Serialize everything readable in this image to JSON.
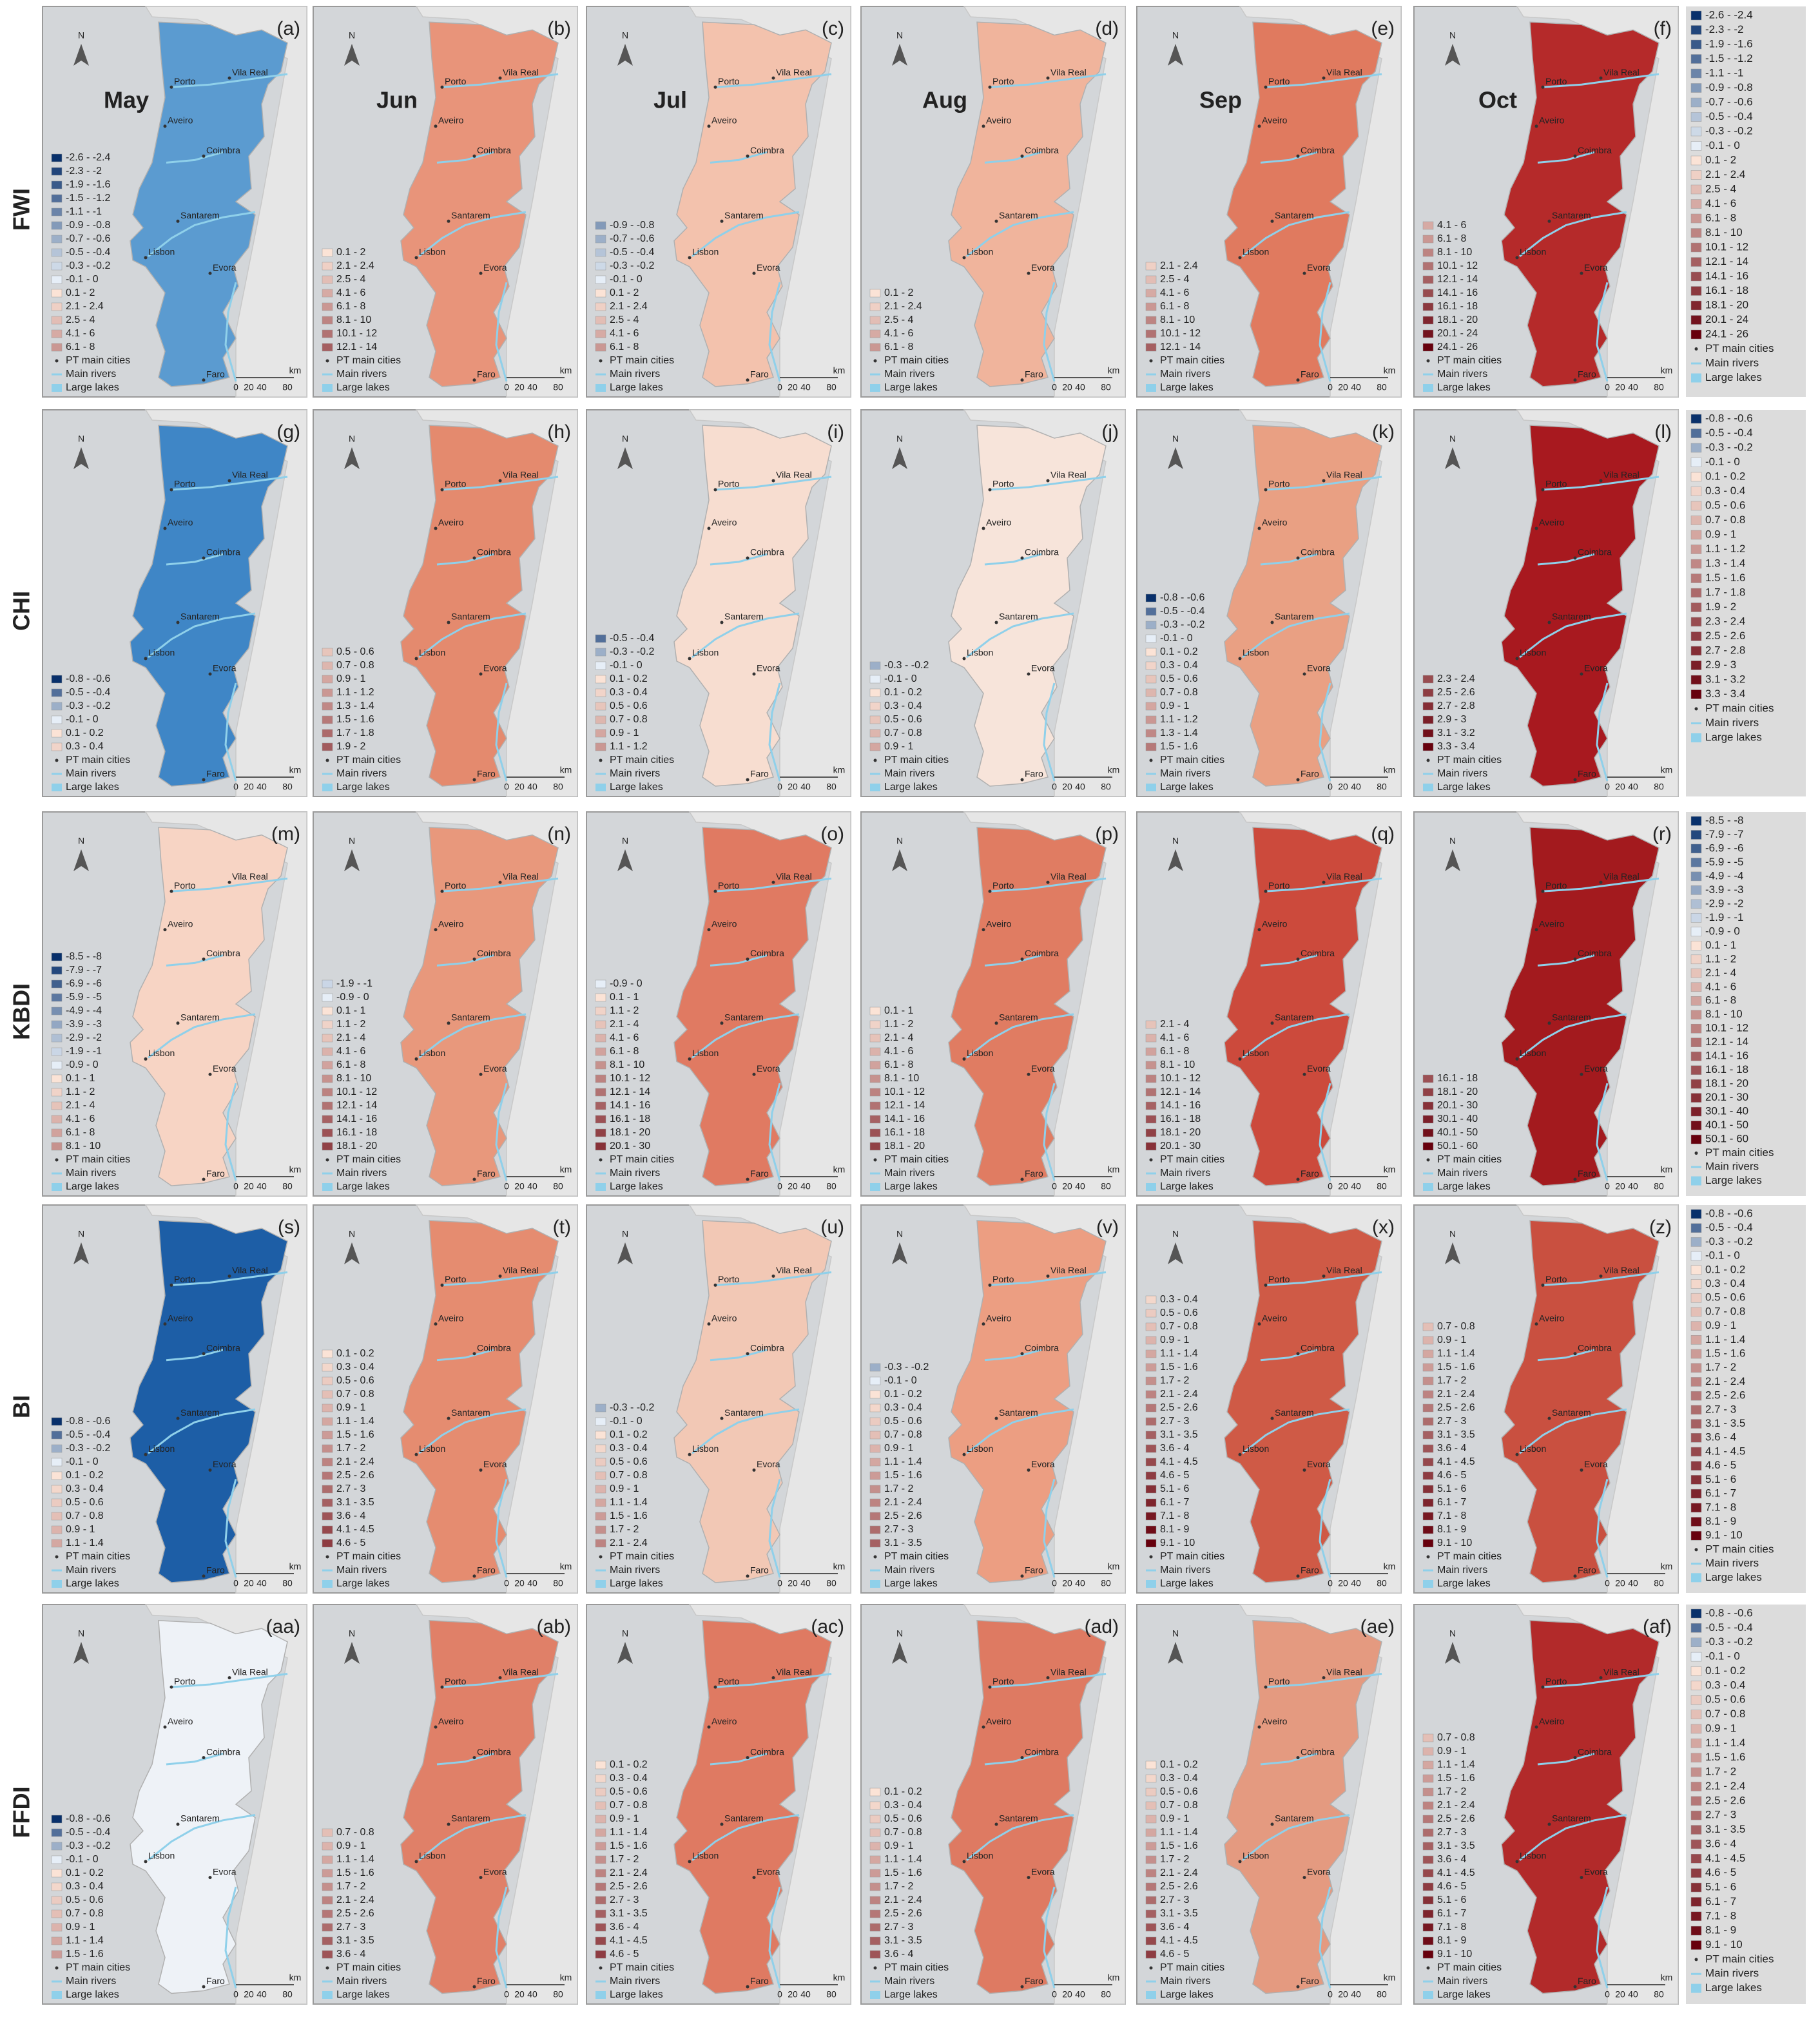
{
  "months": [
    "May",
    "Jun",
    "Jul",
    "Aug",
    "Sep",
    "Oct"
  ],
  "north": "N",
  "cities": [
    "Porto",
    "Vila Real",
    "Aveiro",
    "Coimbra",
    "Santarem",
    "Lisbon",
    "Evora",
    "Faro"
  ],
  "legend_extras": [
    "PT main cities",
    "Main rivers",
    "Large lakes"
  ],
  "scale_bar": [
    "0",
    "20",
    "40",
    "80",
    "km"
  ],
  "rows": [
    {
      "index": "FWI",
      "side_legend": [
        "-2.6 - -2.4",
        "-2.3 - -2",
        "-1.9 - -1.6",
        "-1.5 - -1.2",
        "-1.1 - -1",
        "-0.9 - -0.8",
        "-0.7 - -0.6",
        "-0.5 - -0.4",
        "-0.3 - -0.2",
        "-0.1 - 0",
        "0.1 - 2",
        "2.1 - 2.4",
        "2.5 - 4",
        "4.1 - 6",
        "6.1 - 8",
        "8.1 - 10",
        "10.1 - 12",
        "12.1 - 14",
        "14.1 - 16",
        "16.1 - 18",
        "18.1 - 20",
        "20.1 - 24",
        "24.1 - 26"
      ],
      "panels": [
        {
          "label": "(a)",
          "fill": "#5b9bd0",
          "legend": [
            "-2.6 - -2.4",
            "-2.3 - -2",
            "-1.9 - -1.6",
            "-1.5 - -1.2",
            "-1.1 - -1",
            "-0.9 - -0.8",
            "-0.7 - -0.6",
            "-0.5 - -0.4",
            "-0.3 - -0.2",
            "-0.1 - 0",
            "0.1 - 2",
            "2.1 - 2.4",
            "2.5 - 4",
            "4.1 - 6",
            "6.1 - 8"
          ]
        },
        {
          "label": "(b)",
          "fill": "#e8947a",
          "legend": [
            "0.1 - 2",
            "2.1 - 2.4",
            "2.5 - 4",
            "4.1 - 6",
            "6.1 - 8",
            "8.1 - 10",
            "10.1 - 12",
            "12.1 - 14"
          ]
        },
        {
          "label": "(c)",
          "fill": "#f3c2ad",
          "legend": [
            "-0.9 - -0.8",
            "-0.7 - -0.6",
            "-0.5 - -0.4",
            "-0.3 - -0.2",
            "-0.1 - 0",
            "0.1 - 2",
            "2.1 - 2.4",
            "2.5 - 4",
            "4.1 - 6",
            "6.1 - 8"
          ]
        },
        {
          "label": "(d)",
          "fill": "#f0b49c",
          "legend": [
            "0.1 - 2",
            "2.1 - 2.4",
            "2.5 - 4",
            "4.1 - 6",
            "6.1 - 8"
          ]
        },
        {
          "label": "(e)",
          "fill": "#e07a5f",
          "legend": [
            "2.1 - 2.4",
            "2.5 - 4",
            "4.1 - 6",
            "6.1 - 8",
            "8.1 - 10",
            "10.1 - 12",
            "12.1 - 14"
          ]
        },
        {
          "label": "(f)",
          "fill": "#b52a2a",
          "legend": [
            "4.1 - 6",
            "6.1 - 8",
            "8.1 - 10",
            "10.1 - 12",
            "12.1 - 14",
            "14.1 - 16",
            "16.1 - 18",
            "18.1 - 20",
            "20.1 - 24",
            "24.1 - 26"
          ]
        }
      ]
    },
    {
      "index": "CHI",
      "side_legend": [
        "-0.8 - -0.6",
        "-0.5 - -0.4",
        "-0.3 - -0.2",
        "-0.1 - 0",
        "0.1 - 0.2",
        "0.3 - 0.4",
        "0.5 - 0.6",
        "0.7 - 0.8",
        "0.9 - 1",
        "1.1 - 1.2",
        "1.3 - 1.4",
        "1.5 - 1.6",
        "1.7 - 1.8",
        "1.9 - 2",
        "2.3 - 2.4",
        "2.5 - 2.6",
        "2.7 - 2.8",
        "2.9 - 3",
        "3.1 - 3.2",
        "3.3 - 3.4"
      ],
      "panels": [
        {
          "label": "(g)",
          "fill": "#3f86c6",
          "legend": [
            "-0.8 - -0.6",
            "-0.5 - -0.4",
            "-0.3 - -0.2",
            "-0.1 - 0",
            "0.1 - 0.2",
            "0.3 - 0.4"
          ]
        },
        {
          "label": "(h)",
          "fill": "#e48a6e",
          "legend": [
            "0.5 - 0.6",
            "0.7 - 0.8",
            "0.9 - 1",
            "1.1 - 1.2",
            "1.3 - 1.4",
            "1.5 - 1.6",
            "1.7 - 1.8",
            "1.9 - 2"
          ]
        },
        {
          "label": "(i)",
          "fill": "#f7ddd0",
          "legend": [
            "-0.5 - -0.4",
            "-0.3 - -0.2",
            "-0.1 - 0",
            "0.1 - 0.2",
            "0.3 - 0.4",
            "0.5 - 0.6",
            "0.7 - 0.8",
            "0.9 - 1",
            "1.1 - 1.2"
          ]
        },
        {
          "label": "(j)",
          "fill": "#f7e4da",
          "legend": [
            "-0.3 - -0.2",
            "-0.1 - 0",
            "0.1 - 0.2",
            "0.3 - 0.4",
            "0.5 - 0.6",
            "0.7 - 0.8",
            "0.9 - 1"
          ]
        },
        {
          "label": "(k)",
          "fill": "#e9a083",
          "legend": [
            "-0.8 - -0.6",
            "-0.5 - -0.4",
            "-0.3 - -0.2",
            "-0.1 - 0",
            "0.1 - 0.2",
            "0.3 - 0.4",
            "0.5 - 0.6",
            "0.7 - 0.8",
            "0.9 - 1",
            "1.1 - 1.2",
            "1.3 - 1.4",
            "1.5 - 1.6"
          ]
        },
        {
          "label": "(l)",
          "fill": "#a8191f",
          "legend": [
            "2.3 - 2.4",
            "2.5 - 2.6",
            "2.7 - 2.8",
            "2.9 - 3",
            "3.1 - 3.2",
            "3.3 - 3.4"
          ]
        }
      ]
    },
    {
      "index": "KBDI",
      "side_legend": [
        "-8.5 - -8",
        "-7.9 - -7",
        "-6.9 - -6",
        "-5.9 - -5",
        "-4.9 - -4",
        "-3.9 - -3",
        "-2.9 - -2",
        "-1.9 - -1",
        "-0.9 - 0",
        "0.1 - 1",
        "1.1 - 2",
        "2.1 - 4",
        "4.1 - 6",
        "6.1 - 8",
        "8.1 - 10",
        "10.1 - 12",
        "12.1 - 14",
        "14.1 - 16",
        "16.1 - 18",
        "18.1 - 20",
        "20.1 - 30",
        "30.1 - 40",
        "40.1 - 50",
        "50.1 - 60"
      ],
      "panels": [
        {
          "label": "(m)",
          "fill": "#f7d4c4",
          "legend": [
            "-8.5 - -8",
            "-7.9 - -7",
            "-6.9 - -6",
            "-5.9 - -5",
            "-4.9 - -4",
            "-3.9 - -3",
            "-2.9 - -2",
            "-1.9 - -1",
            "-0.9 - 0",
            "0.1 - 1",
            "1.1 - 2",
            "2.1 - 4",
            "4.1 - 6",
            "6.1 - 8",
            "8.1 - 10"
          ]
        },
        {
          "label": "(n)",
          "fill": "#e8987c",
          "legend": [
            "-1.9 - -1",
            "-0.9 - 0",
            "0.1 - 1",
            "1.1 - 2",
            "2.1 - 4",
            "4.1 - 6",
            "6.1 - 8",
            "8.1 - 10",
            "10.1 - 12",
            "12.1 - 14",
            "14.1 - 16",
            "16.1 - 18",
            "18.1 - 20"
          ]
        },
        {
          "label": "(o)",
          "fill": "#e07a62",
          "legend": [
            "-0.9 - 0",
            "0.1 - 1",
            "1.1 - 2",
            "2.1 - 4",
            "4.1 - 6",
            "6.1 - 8",
            "8.1 - 10",
            "10.1 - 12",
            "12.1 - 14",
            "14.1 - 16",
            "16.1 - 18",
            "18.1 - 20",
            "20.1 - 30"
          ]
        },
        {
          "label": "(p)",
          "fill": "#e07c62",
          "legend": [
            "0.1 - 1",
            "1.1 - 2",
            "2.1 - 4",
            "4.1 - 6",
            "6.1 - 8",
            "8.1 - 10",
            "10.1 - 12",
            "12.1 - 14",
            "14.1 - 16",
            "16.1 - 18",
            "18.1 - 20"
          ]
        },
        {
          "label": "(q)",
          "fill": "#cc4a3c",
          "legend": [
            "2.1 - 4",
            "4.1 - 6",
            "6.1 - 8",
            "8.1 - 10",
            "10.1 - 12",
            "12.1 - 14",
            "14.1 - 16",
            "16.1 - 18",
            "18.1 - 20",
            "20.1 - 30"
          ]
        },
        {
          "label": "(r)",
          "fill": "#a31a1e",
          "legend": [
            "16.1 - 18",
            "18.1 - 20",
            "20.1 - 30",
            "30.1 - 40",
            "40.1 - 50",
            "50.1 - 60"
          ]
        }
      ]
    },
    {
      "index": "BI",
      "side_legend": [
        "-0.8 - -0.6",
        "-0.5 - -0.4",
        "-0.3 - -0.2",
        "-0.1 - 0",
        "0.1 - 0.2",
        "0.3 - 0.4",
        "0.5 - 0.6",
        "0.7 - 0.8",
        "0.9 - 1",
        "1.1 - 1.4",
        "1.5 - 1.6",
        "1.7 - 2",
        "2.1 - 2.4",
        "2.5 - 2.6",
        "2.7 - 3",
        "3.1 - 3.5",
        "3.6 - 4",
        "4.1 - 4.5",
        "4.6 - 5",
        "5.1 - 6",
        "6.1 - 7",
        "7.1 - 8",
        "8.1 - 9",
        "9.1 - 10"
      ],
      "panels": [
        {
          "label": "(s)",
          "fill": "#1d5ea6",
          "legend": [
            "-0.8 - -0.6",
            "-0.5 - -0.4",
            "-0.3 - -0.2",
            "-0.1 - 0",
            "0.1 - 0.2",
            "0.3 - 0.4",
            "0.5 - 0.6",
            "0.7 - 0.8",
            "0.9 - 1",
            "1.1 - 1.4"
          ]
        },
        {
          "label": "(t)",
          "fill": "#e58c70",
          "legend": [
            "0.1 - 0.2",
            "0.3 - 0.4",
            "0.5 - 0.6",
            "0.7 - 0.8",
            "0.9 - 1",
            "1.1 - 1.4",
            "1.5 - 1.6",
            "1.7 - 2",
            "2.1 - 2.4",
            "2.5 - 2.6",
            "2.7 - 3",
            "3.1 - 3.5",
            "3.6 - 4",
            "4.1 - 4.5",
            "4.6 - 5"
          ]
        },
        {
          "label": "(u)",
          "fill": "#f2c8b5",
          "legend": [
            "-0.3 - -0.2",
            "-0.1 - 0",
            "0.1 - 0.2",
            "0.3 - 0.4",
            "0.5 - 0.6",
            "0.7 - 0.8",
            "0.9 - 1",
            "1.1 - 1.4",
            "1.5 - 1.6",
            "1.7 - 2",
            "2.1 - 2.4"
          ]
        },
        {
          "label": "(v)",
          "fill": "#ec9e82",
          "legend": [
            "-0.3 - -0.2",
            "-0.1 - 0",
            "0.1 - 0.2",
            "0.3 - 0.4",
            "0.5 - 0.6",
            "0.7 - 0.8",
            "0.9 - 1",
            "1.1 - 1.4",
            "1.5 - 1.6",
            "1.7 - 2",
            "2.1 - 2.4",
            "2.5 - 2.6",
            "2.7 - 3",
            "3.1 - 3.5"
          ]
        },
        {
          "label": "(x)",
          "fill": "#cf5a46",
          "legend": [
            "0.3 - 0.4",
            "0.5 - 0.6",
            "0.7 - 0.8",
            "0.9 - 1",
            "1.1 - 1.4",
            "1.5 - 1.6",
            "1.7 - 2",
            "2.1 - 2.4",
            "2.5 - 2.6",
            "2.7 - 3",
            "3.1 - 3.5",
            "3.6 - 4",
            "4.1 - 4.5",
            "4.6 - 5",
            "5.1 - 6",
            "6.1 - 7",
            "7.1 - 8",
            "8.1 - 9",
            "9.1 - 10"
          ]
        },
        {
          "label": "(z)",
          "fill": "#c95040",
          "legend": [
            "0.7 - 0.8",
            "0.9 - 1",
            "1.1 - 1.4",
            "1.5 - 1.6",
            "1.7 - 2",
            "2.1 - 2.4",
            "2.5 - 2.6",
            "2.7 - 3",
            "3.1 - 3.5",
            "3.6 - 4",
            "4.1 - 4.5",
            "4.6 - 5",
            "5.1 - 6",
            "6.1 - 7",
            "7.1 - 8",
            "8.1 - 9",
            "9.1 - 10"
          ]
        }
      ]
    },
    {
      "index": "FFDI",
      "side_legend": [
        "-0.8 - -0.6",
        "-0.5 - -0.4",
        "-0.3 - -0.2",
        "-0.1 - 0",
        "0.1 - 0.2",
        "0.3 - 0.4",
        "0.5 - 0.6",
        "0.7 - 0.8",
        "0.9 - 1",
        "1.1 - 1.4",
        "1.5 - 1.6",
        "1.7 - 2",
        "2.1 - 2.4",
        "2.5 - 2.6",
        "2.7 - 3",
        "3.1 - 3.5",
        "3.6 - 4",
        "4.1 - 4.5",
        "4.6 - 5",
        "5.1 - 6",
        "6.1 - 7",
        "7.1 - 8",
        "8.1 - 9",
        "9.1 - 10"
      ],
      "panels": [
        {
          "label": "(aa)",
          "fill": "#eef2f7",
          "legend": [
            "-0.8 - -0.6",
            "-0.5 - -0.4",
            "-0.3 - -0.2",
            "-0.1 - 0",
            "0.1 - 0.2",
            "0.3 - 0.4",
            "0.5 - 0.6",
            "0.7 - 0.8",
            "0.9 - 1",
            "1.1 - 1.4",
            "1.5 - 1.6"
          ]
        },
        {
          "label": "(ab)",
          "fill": "#e08068",
          "legend": [
            "0.7 - 0.8",
            "0.9 - 1",
            "1.1 - 1.4",
            "1.5 - 1.6",
            "1.7 - 2",
            "2.1 - 2.4",
            "2.5 - 2.6",
            "2.7 - 3",
            "3.1 - 3.5",
            "3.6 - 4"
          ]
        },
        {
          "label": "(ac)",
          "fill": "#df7a62",
          "legend": [
            "0.1 - 0.2",
            "0.3 - 0.4",
            "0.5 - 0.6",
            "0.7 - 0.8",
            "0.9 - 1",
            "1.1 - 1.4",
            "1.5 - 1.6",
            "1.7 - 2",
            "2.1 - 2.4",
            "2.5 - 2.6",
            "2.7 - 3",
            "3.1 - 3.5",
            "3.6 - 4",
            "4.1 - 4.5",
            "4.6 - 5"
          ]
        },
        {
          "label": "(ad)",
          "fill": "#de7a62",
          "legend": [
            "0.1 - 0.2",
            "0.3 - 0.4",
            "0.5 - 0.6",
            "0.7 - 0.8",
            "0.9 - 1",
            "1.1 - 1.4",
            "1.5 - 1.6",
            "1.7 - 2",
            "2.1 - 2.4",
            "2.5 - 2.6",
            "2.7 - 3",
            "3.1 - 3.5",
            "3.6 - 4"
          ]
        },
        {
          "label": "(ae)",
          "fill": "#e49a80",
          "legend": [
            "0.1 - 0.2",
            "0.3 - 0.4",
            "0.5 - 0.6",
            "0.7 - 0.8",
            "0.9 - 1",
            "1.1 - 1.4",
            "1.5 - 1.6",
            "1.7 - 2",
            "2.1 - 2.4",
            "2.5 - 2.6",
            "2.7 - 3",
            "3.1 - 3.5",
            "3.6 - 4",
            "4.1 - 4.5",
            "4.6 - 5"
          ]
        },
        {
          "label": "(af)",
          "fill": "#b22a2a",
          "legend": [
            "0.7 - 0.8",
            "0.9 - 1",
            "1.1 - 1.4",
            "1.5 - 1.6",
            "1.7 - 2",
            "2.1 - 2.4",
            "2.5 - 2.6",
            "2.7 - 3",
            "3.1 - 3.5",
            "3.6 - 4",
            "4.1 - 4.5",
            "4.6 - 5",
            "5.1 - 6",
            "6.1 - 7",
            "7.1 - 8",
            "8.1 - 9",
            "9.1 - 10"
          ]
        }
      ]
    }
  ]
}
